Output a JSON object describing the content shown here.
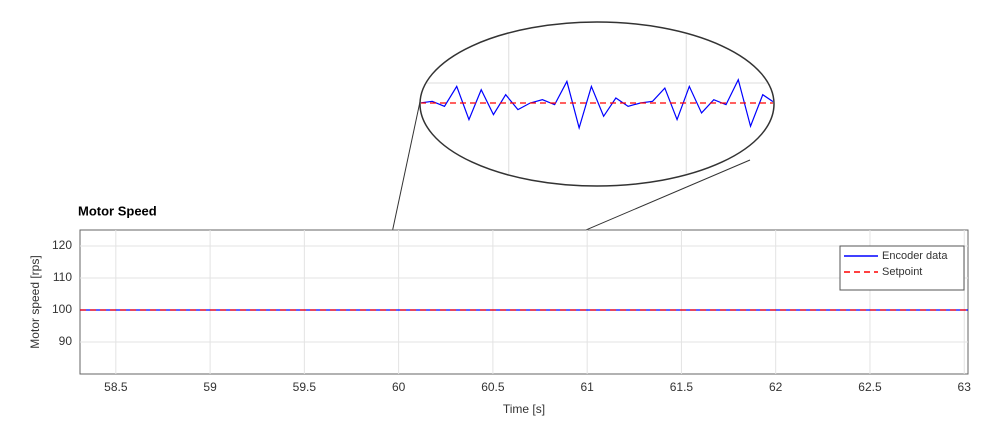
{
  "chart_data": [
    {
      "type": "line",
      "title": "Motor Speed",
      "x_label": "Time [s]",
      "y_label": "Motor speed [rps]",
      "xlim": [
        58.31,
        63.02
      ],
      "ylim": [
        80,
        125
      ],
      "xticks": [
        58.5,
        59,
        59.5,
        60,
        60.5,
        61,
        61.5,
        62,
        62.5,
        63
      ],
      "yticks": [
        90,
        100,
        110,
        120
      ],
      "grid": true,
      "legend": "upper-right",
      "x": [
        58.31,
        59,
        59.5,
        60,
        60.5,
        61,
        61.5,
        62,
        62.5,
        63.02
      ],
      "series": [
        {
          "name": "Encoder data",
          "color": "#0000ff",
          "dash": false,
          "values": [
            100,
            100,
            100,
            100,
            100,
            100,
            100,
            100,
            100,
            100
          ]
        },
        {
          "name": "Setpoint",
          "color": "#ff0000",
          "dash": true,
          "values": [
            100,
            100,
            100,
            100,
            100,
            100,
            100,
            100,
            100,
            100
          ]
        }
      ]
    },
    {
      "type": "line",
      "xlim": [
        59.85,
        59.995
      ],
      "ylim": [
        99.5,
        100.5
      ],
      "grid": true,
      "x": [
        59.85,
        59.855,
        59.86,
        59.865,
        59.87,
        59.875,
        59.88,
        59.885,
        59.89,
        59.895,
        59.9,
        59.905,
        59.91,
        59.915,
        59.92,
        59.925,
        59.93,
        59.935,
        59.94,
        59.945,
        59.95,
        59.955,
        59.96,
        59.965,
        59.97,
        59.975,
        59.98,
        59.985,
        59.99,
        59.995
      ],
      "series": [
        {
          "color": "#0000ff",
          "dash": false,
          "values": [
            100.0,
            100.01,
            99.98,
            100.1,
            99.9,
            100.08,
            99.93,
            100.05,
            99.96,
            100.0,
            100.02,
            99.99,
            100.13,
            99.85,
            100.1,
            99.92,
            100.03,
            99.98,
            100.0,
            100.01,
            100.09,
            99.9,
            100.1,
            99.94,
            100.02,
            99.99,
            100.14,
            99.86,
            100.05,
            100.0
          ]
        },
        {
          "color": "#ff0000",
          "dash": true,
          "values": [
            100,
            100,
            100,
            100,
            100,
            100,
            100,
            100,
            100,
            100,
            100,
            100,
            100,
            100,
            100,
            100,
            100,
            100,
            100,
            100,
            100,
            100,
            100,
            100,
            100,
            100,
            100,
            100,
            100,
            100
          ]
        }
      ]
    }
  ]
}
